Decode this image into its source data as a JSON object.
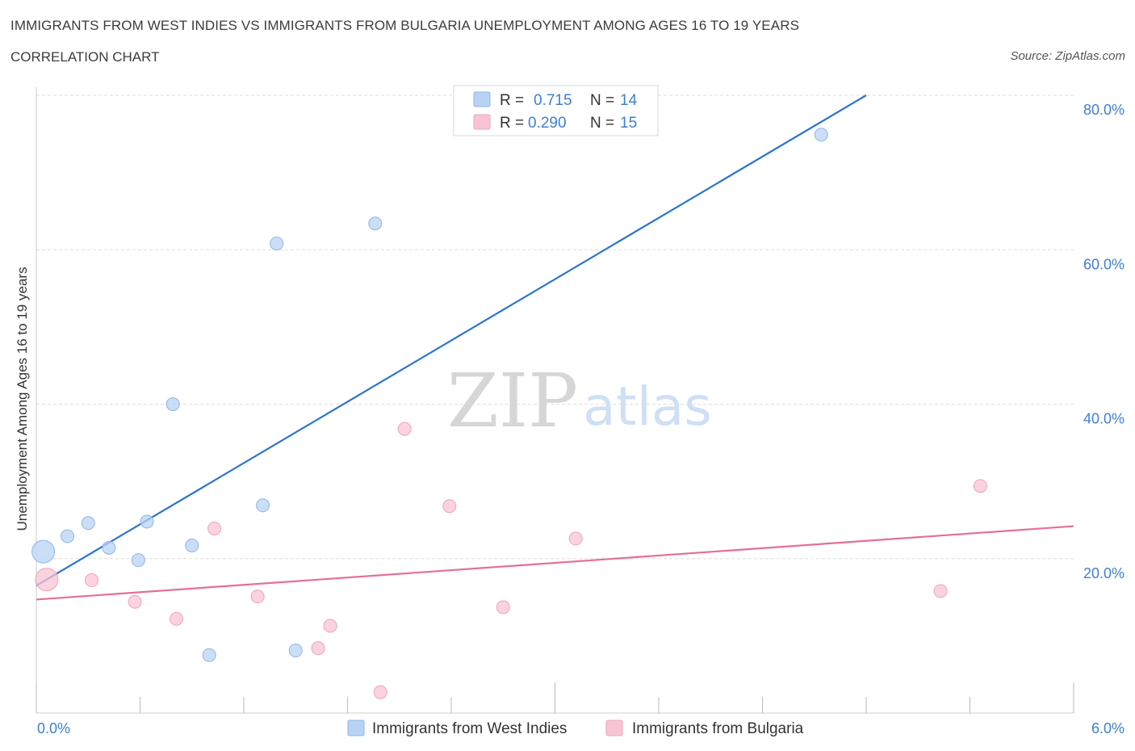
{
  "header": {
    "title": "IMMIGRANTS FROM WEST INDIES VS IMMIGRANTS FROM BULGARIA UNEMPLOYMENT AMONG AGES 16 TO 19 YEARS",
    "subtitle": "CORRELATION CHART",
    "source": "Source: ZipAtlas.com"
  },
  "watermark": {
    "zip": "ZIP",
    "atlas": "atlas"
  },
  "colors": {
    "blue_fill": "#b8d3f4",
    "blue_stroke": "#8fb5e6",
    "blue_line": "#2b74cf",
    "pink_fill": "#f8c4d4",
    "pink_stroke": "#eea3bb",
    "pink_line": "#e46f97",
    "axis_label": "#3f7fd1",
    "grid": "#dddddd"
  },
  "legend": {
    "r_label": "R =",
    "n_label": "N =",
    "rows": [
      {
        "r": "0.715",
        "n": "14"
      },
      {
        "r": "0.290",
        "n": "15"
      }
    ]
  },
  "chart_data": {
    "type": "scatter",
    "xlabel": "",
    "ylabel": "Unemployment Among Ages 16 to 19 years",
    "xlim": [
      0,
      6
    ],
    "ylim": [
      0,
      80
    ],
    "x_tick_labels": [
      "0.0%",
      "6.0%"
    ],
    "y_tick_values": [
      20,
      40,
      60,
      80
    ],
    "y_tick_labels": [
      "20.0%",
      "40.0%",
      "60.0%",
      "80.0%"
    ],
    "grid": true,
    "series": [
      {
        "name": "Immigrants from West Indies",
        "color": "blue",
        "trend": {
          "x": [
            0.0,
            4.8
          ],
          "y": [
            16.5,
            80.0
          ]
        },
        "points": [
          {
            "x": 0.04,
            "y": 20.9,
            "big": true
          },
          {
            "x": 0.18,
            "y": 22.9
          },
          {
            "x": 0.3,
            "y": 24.6
          },
          {
            "x": 0.42,
            "y": 21.4
          },
          {
            "x": 0.59,
            "y": 19.8
          },
          {
            "x": 0.64,
            "y": 24.8
          },
          {
            "x": 0.79,
            "y": 40.0
          },
          {
            "x": 0.9,
            "y": 21.7
          },
          {
            "x": 1.0,
            "y": 7.5
          },
          {
            "x": 1.31,
            "y": 26.9
          },
          {
            "x": 1.39,
            "y": 60.8
          },
          {
            "x": 1.5,
            "y": 8.1
          },
          {
            "x": 1.96,
            "y": 63.4
          },
          {
            "x": 4.54,
            "y": 74.9
          }
        ]
      },
      {
        "name": "Immigrants from Bulgaria",
        "color": "pink",
        "trend": {
          "x": [
            0.0,
            6.0
          ],
          "y": [
            14.7,
            24.2
          ]
        },
        "points": [
          {
            "x": 0.06,
            "y": 17.3,
            "big": true
          },
          {
            "x": 0.32,
            "y": 17.2
          },
          {
            "x": 0.57,
            "y": 14.4
          },
          {
            "x": 0.81,
            "y": 12.2
          },
          {
            "x": 1.03,
            "y": 23.9
          },
          {
            "x": 1.28,
            "y": 15.1
          },
          {
            "x": 1.63,
            "y": 8.4
          },
          {
            "x": 1.7,
            "y": 11.3
          },
          {
            "x": 1.99,
            "y": 2.7
          },
          {
            "x": 2.13,
            "y": 36.8
          },
          {
            "x": 2.39,
            "y": 26.8
          },
          {
            "x": 2.7,
            "y": 13.7
          },
          {
            "x": 3.12,
            "y": 22.6
          },
          {
            "x": 5.23,
            "y": 15.8
          },
          {
            "x": 5.46,
            "y": 29.4
          }
        ]
      }
    ]
  }
}
